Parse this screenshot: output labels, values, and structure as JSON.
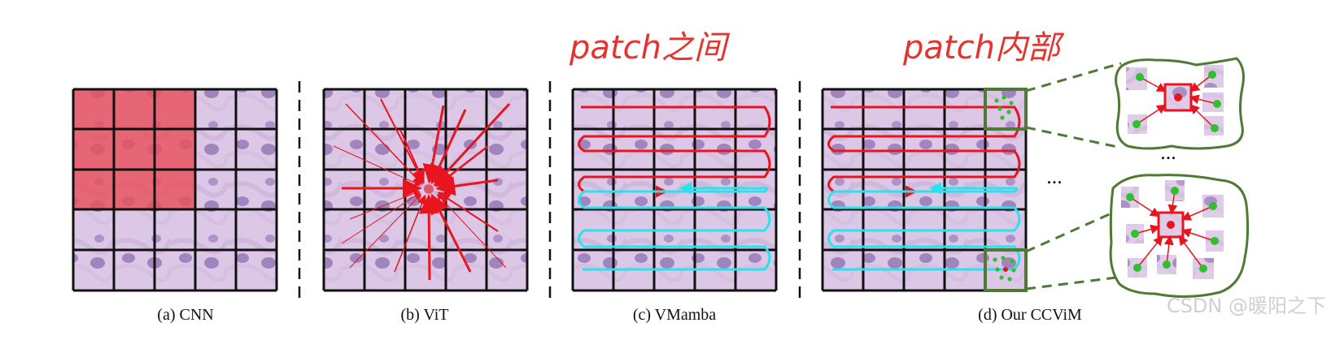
{
  "captions": {
    "a": "(a) CNN",
    "b": "(b) ViT",
    "c": "(c) VMamba",
    "d": "(d) Our CCViM"
  },
  "annotations": {
    "between": "patch之间",
    "within": "patch内部"
  },
  "ellipsis": "...",
  "watermark": "CSDN @暖阳之下",
  "colors": {
    "tissue": "#dcc8e6",
    "cnn_highlight": "#e8505b",
    "arrow_red": "#e8141e",
    "scan_cyan": "#27e3ee",
    "dot_green": "#2fbf2f",
    "outline_green": "#4e7a33",
    "grid": "#111111"
  }
}
